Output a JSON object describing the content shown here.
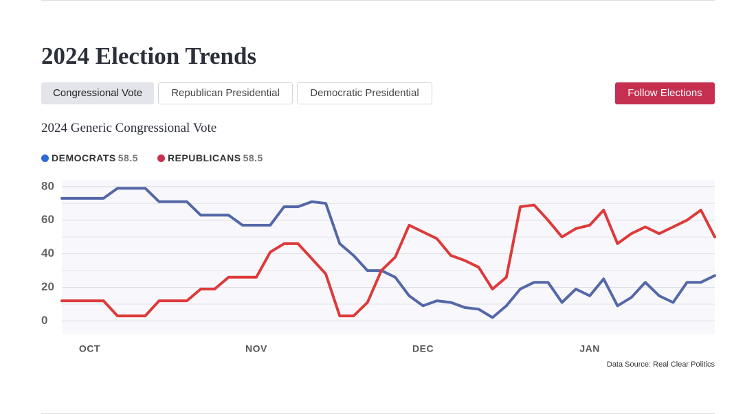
{
  "header": {
    "title": "2024 Election Trends",
    "tabs": [
      "Congressional Vote",
      "Republican Presidential",
      "Democratic Presidential"
    ],
    "button": "Follow Elections"
  },
  "chart_data": {
    "type": "line",
    "title": "2024 Generic Congressional Vote",
    "source": "Data Source: Real Clear Politics",
    "categories": [
      null,
      null,
      "OCT",
      null,
      null,
      null,
      null,
      null,
      null,
      null,
      null,
      null,
      null,
      null,
      "NOV",
      null,
      null,
      null,
      null,
      null,
      null,
      null,
      null,
      null,
      null,
      null,
      "DEC",
      null,
      null,
      null,
      null,
      null,
      null,
      null,
      null,
      null,
      null,
      null,
      "JAN",
      null,
      null,
      null,
      null,
      null,
      null,
      null,
      null,
      null
    ],
    "series": [
      {
        "name": "DEMOCRATS",
        "legend_value": "58.5",
        "color": "#5468a8",
        "dot_color": "#2d6bd4",
        "values": [
          73,
          73,
          73,
          73,
          79,
          79,
          79,
          71,
          71,
          71,
          63,
          63,
          63,
          57,
          57,
          57,
          68,
          68,
          71,
          70,
          46,
          39,
          30,
          30,
          26,
          15,
          9,
          12,
          11,
          8,
          7,
          2,
          9,
          19,
          23,
          23,
          11,
          19,
          15,
          25,
          9,
          14,
          23,
          15,
          11,
          23,
          23,
          27
        ]
      },
      {
        "name": "REPUBLICANS",
        "legend_value": "58.5",
        "color": "#dd3a3a",
        "dot_color": "#c8304e",
        "values": [
          12,
          12,
          12,
          12,
          3,
          3,
          3,
          12,
          12,
          12,
          19,
          19,
          26,
          26,
          26,
          41,
          46,
          46,
          37,
          28,
          3,
          3,
          11,
          30,
          38,
          57,
          53,
          49,
          39,
          36,
          32,
          19,
          26,
          68,
          69,
          60,
          50,
          55,
          57,
          66,
          46,
          52,
          56,
          52,
          56,
          60,
          66,
          50
        ]
      }
    ],
    "ylim": [
      -8,
      84
    ],
    "yticks": [
      0,
      20,
      40,
      60,
      80
    ],
    "yminorticks": [
      10,
      30,
      50,
      70
    ],
    "grid": true
  }
}
